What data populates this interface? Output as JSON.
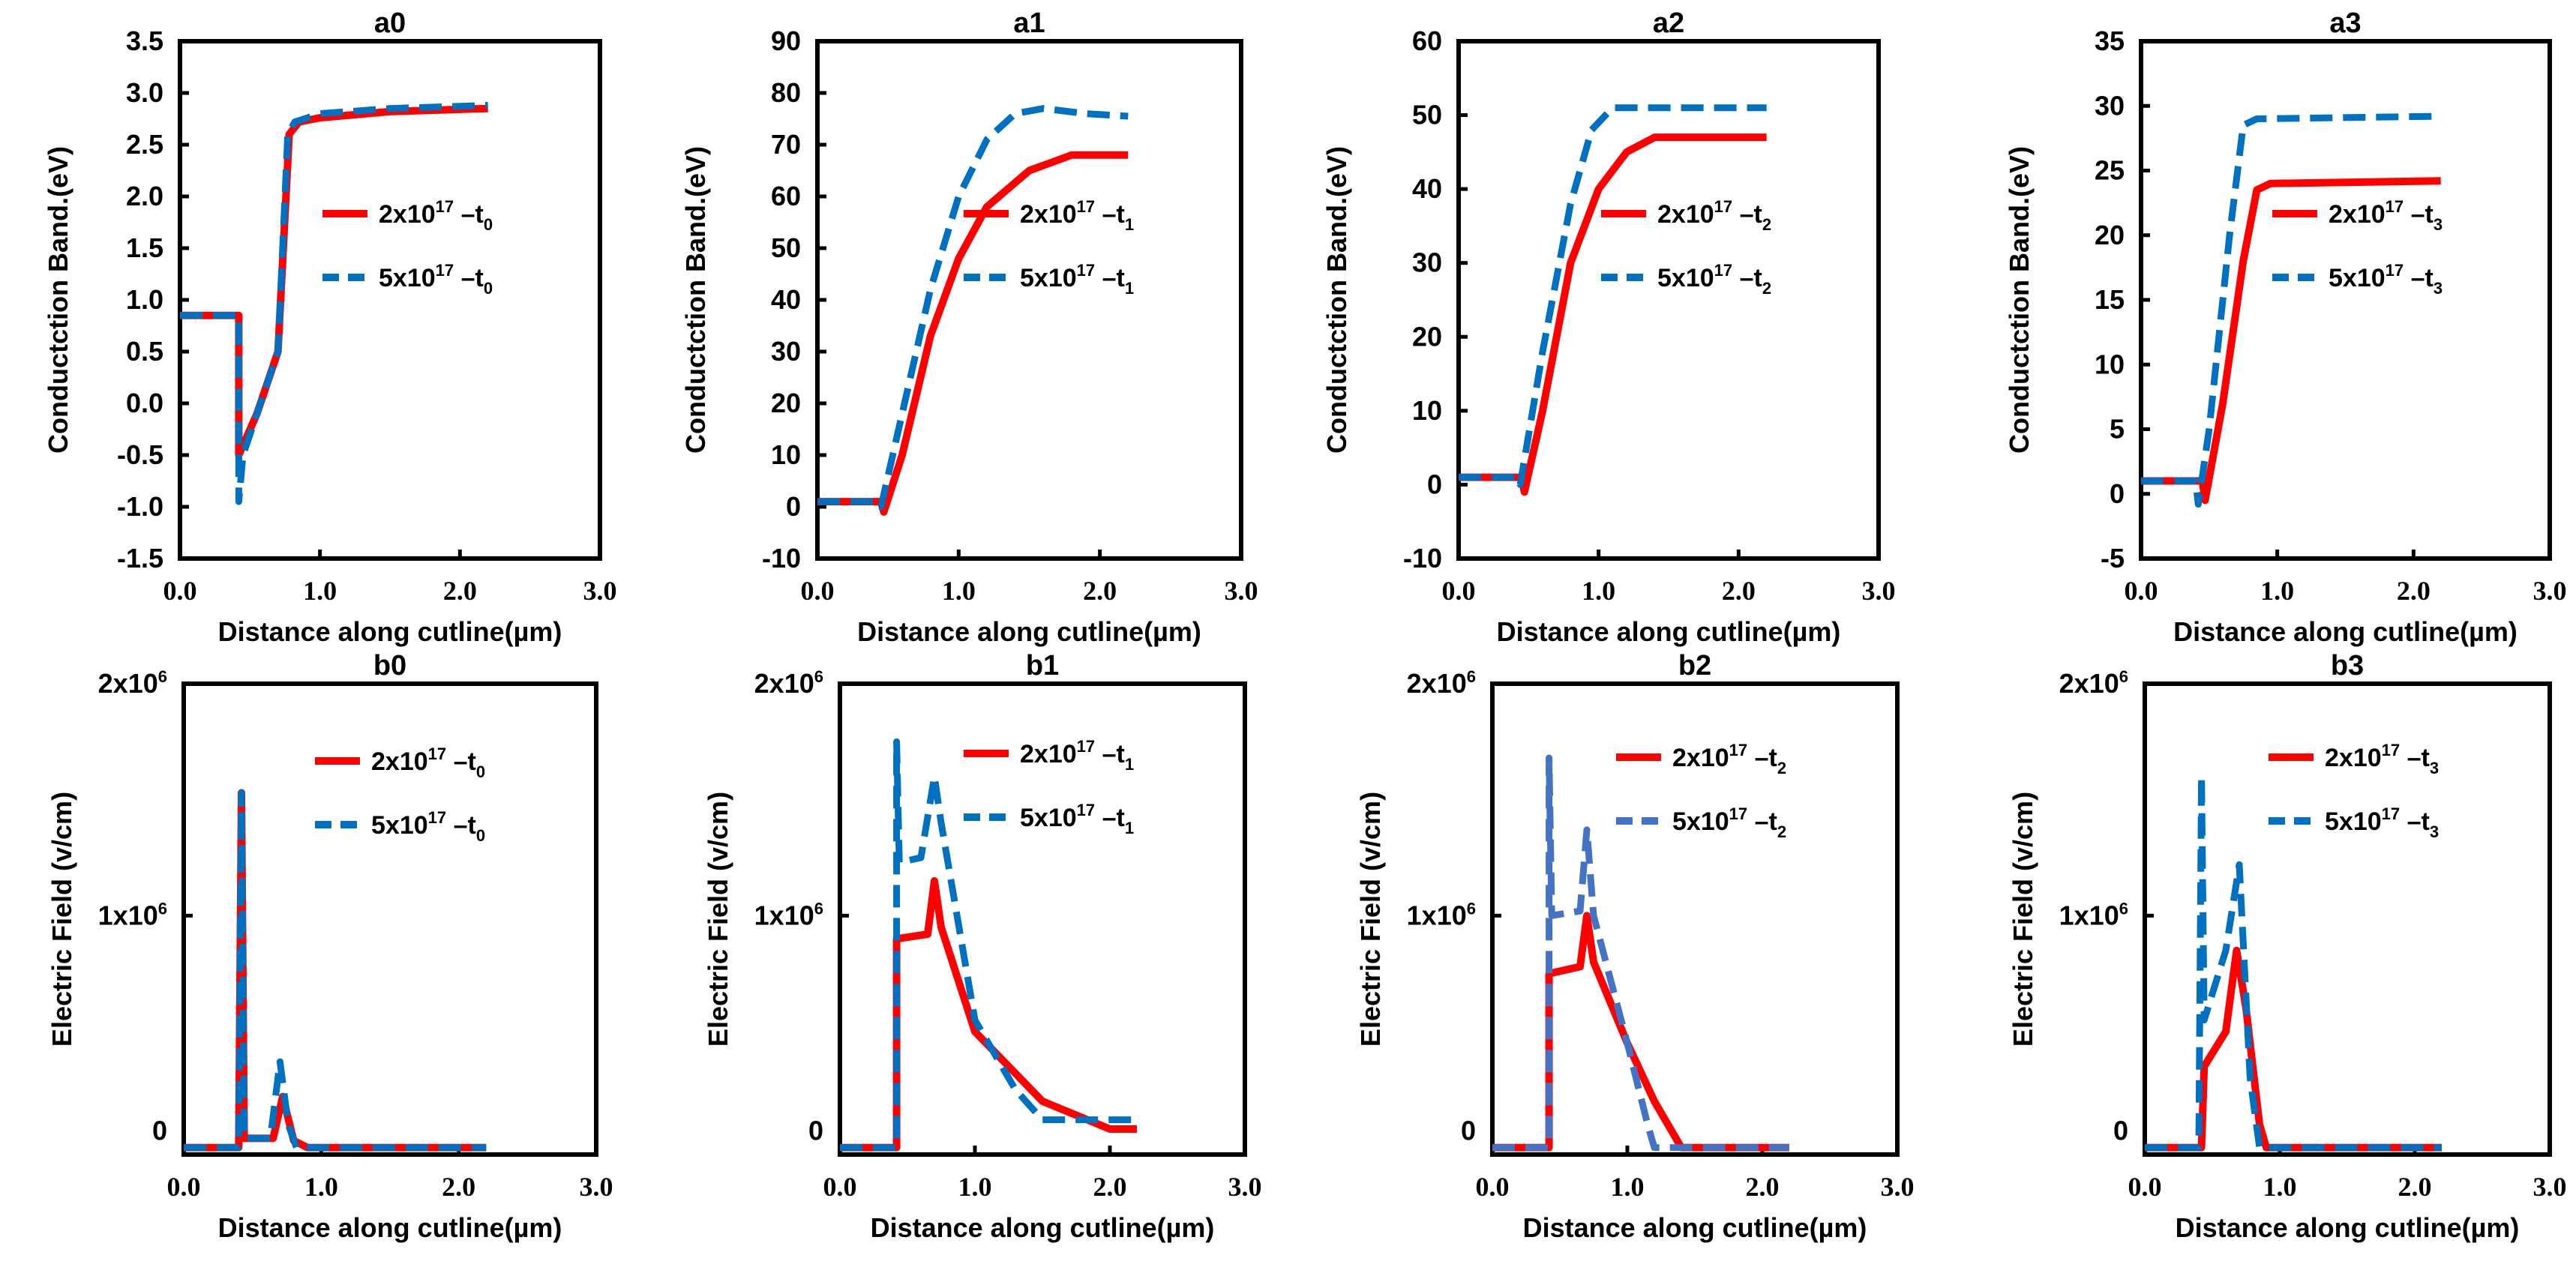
{
  "chart_data": [
    {
      "type": "line",
      "title": "a0",
      "xlabel": "Distance along cutline(µm)",
      "ylabel": "Conductction Band.(eV)",
      "xlim": [
        0,
        3
      ],
      "ylim": [
        -1.5,
        3.5
      ],
      "xticks": [
        "0.0",
        "1.0",
        "2.0",
        "3.0"
      ],
      "yticks": [
        "-1.5",
        "-1.0",
        "-0.5",
        "0.0",
        "0.5",
        "1.0",
        "1.5",
        "2.0",
        "2.5",
        "3.0",
        "3.5"
      ],
      "legend_position": "right",
      "series": [
        {
          "name": "2x10^17 –t0",
          "leg": {
            "base": "2x10",
            "exp": "17",
            "mid": " –t",
            "sub": "0"
          },
          "color": "#ff0000",
          "dash": false,
          "x": [
            0,
            0.42,
            0.42,
            0.55,
            0.7,
            0.78,
            0.85,
            1.0,
            1.5,
            2.2
          ],
          "y": [
            0.85,
            0.85,
            -0.5,
            -0.1,
            0.5,
            2.6,
            2.72,
            2.76,
            2.82,
            2.85
          ]
        },
        {
          "name": "5x10^17 –t0",
          "leg": {
            "base": "5x10",
            "exp": "17",
            "mid": " –t",
            "sub": "0"
          },
          "color": "#0070c0",
          "dash": true,
          "x": [
            0,
            0.42,
            0.42,
            0.45,
            0.7,
            0.77,
            0.82,
            1.0,
            1.5,
            2.2
          ],
          "y": [
            0.85,
            0.85,
            -0.95,
            -0.5,
            0.5,
            2.6,
            2.72,
            2.8,
            2.85,
            2.88
          ]
        }
      ]
    },
    {
      "type": "line",
      "title": "a1",
      "xlabel": "Distance along cutline(µm)",
      "ylabel": "Conductction Band.(eV)",
      "xlim": [
        0,
        3
      ],
      "ylim": [
        -10,
        90
      ],
      "xticks": [
        "0.0",
        "1.0",
        "2.0",
        "3.0"
      ],
      "yticks": [
        "-10",
        "0",
        "10",
        "20",
        "30",
        "40",
        "50",
        "60",
        "70",
        "80",
        "90"
      ],
      "legend_position": "right",
      "series": [
        {
          "name": "2x10^17 –t1",
          "leg": {
            "base": "2x10",
            "exp": "17",
            "mid": " –t",
            "sub": "1"
          },
          "color": "#ff0000",
          "dash": false,
          "x": [
            0,
            0.45,
            0.47,
            0.6,
            0.8,
            1.0,
            1.2,
            1.5,
            1.8,
            2.2
          ],
          "y": [
            1,
            1,
            -1,
            10,
            33,
            48,
            58,
            65,
            68,
            68
          ]
        },
        {
          "name": "5x10^17 –t1",
          "leg": {
            "base": "5x10",
            "exp": "17",
            "mid": " –t",
            "sub": "1"
          },
          "color": "#0070c0",
          "dash": true,
          "x": [
            0,
            0.42,
            0.45,
            0.6,
            0.8,
            1.0,
            1.2,
            1.4,
            1.6,
            1.9,
            2.2
          ],
          "y": [
            1,
            1,
            0,
            18,
            42,
            60,
            71,
            76,
            77,
            76,
            75.5
          ]
        }
      ]
    },
    {
      "type": "line",
      "title": "a2",
      "xlabel": "Distance along cutline(µm)",
      "ylabel": "Conductction Band.(eV)",
      "xlim": [
        0,
        3
      ],
      "ylim": [
        -10,
        60
      ],
      "xticks": [
        "0.0",
        "1.0",
        "2.0",
        "3.0"
      ],
      "yticks": [
        "-10",
        "0",
        "10",
        "20",
        "30",
        "40",
        "50",
        "60"
      ],
      "legend_position": "right",
      "series": [
        {
          "name": "2x10^17 –t2",
          "leg": {
            "base": "2x10",
            "exp": "17",
            "mid": " –t",
            "sub": "2"
          },
          "color": "#ff0000",
          "dash": false,
          "x": [
            0,
            0.45,
            0.47,
            0.6,
            0.8,
            1.0,
            1.2,
            1.4,
            2.2
          ],
          "y": [
            1,
            1,
            -1,
            10,
            30,
            40,
            45,
            47,
            47
          ]
        },
        {
          "name": "5x10^17 –t2",
          "leg": {
            "base": "5x10",
            "exp": "17",
            "mid": " –t",
            "sub": "2"
          },
          "color": "#0070c0",
          "dash": true,
          "x": [
            0,
            0.42,
            0.44,
            0.6,
            0.8,
            0.95,
            1.1,
            2.2
          ],
          "y": [
            1,
            1,
            0,
            18,
            38,
            48,
            51,
            51
          ]
        }
      ]
    },
    {
      "type": "line",
      "title": "a3",
      "xlabel": "Distance along cutline(µm)",
      "ylabel": "Conductction Band.(eV)",
      "xlim": [
        0,
        3
      ],
      "ylim": [
        -5,
        35
      ],
      "xticks": [
        "0.0",
        "1.0",
        "2.0",
        "3.0"
      ],
      "yticks": [
        "-5",
        "0",
        "5",
        "10",
        "15",
        "20",
        "25",
        "30",
        "35"
      ],
      "legend_position": "right",
      "series": [
        {
          "name": "2x10^17 –t3",
          "leg": {
            "base": "2x10",
            "exp": "17",
            "mid": " –t",
            "sub": "3"
          },
          "color": "#ff0000",
          "dash": false,
          "x": [
            0,
            0.45,
            0.47,
            0.6,
            0.75,
            0.85,
            0.95,
            2.2
          ],
          "y": [
            1,
            1,
            -0.5,
            7,
            18,
            23.5,
            24,
            24.2
          ]
        },
        {
          "name": "5x10^17 –t3",
          "leg": {
            "base": "5x10",
            "exp": "17",
            "mid": " –t",
            "sub": "3"
          },
          "color": "#0070c0",
          "dash": true,
          "x": [
            0,
            0.4,
            0.42,
            0.5,
            0.65,
            0.75,
            0.85,
            2.2
          ],
          "y": [
            1,
            1,
            -0.8,
            5,
            20,
            28.5,
            29,
            29.2
          ]
        }
      ]
    },
    {
      "type": "line",
      "title": "b0",
      "xlabel": "Distance along cutline(µm)",
      "ylabel": "Electric Field (v/cm)",
      "xlim": [
        0,
        3
      ],
      "ylim": [
        -0.03,
        2
      ],
      "y_unit": "x10^6",
      "xticks": [
        "0.0",
        "1.0",
        "2.0",
        "3.0"
      ],
      "yticks_exp": [
        {
          "base": "0",
          "exp": ""
        },
        {
          "base": "1x10",
          "exp": "6"
        },
        {
          "base": "2x10",
          "exp": "6"
        }
      ],
      "legend_position": "top-right",
      "series": [
        {
          "name": "2x10^17 –t0",
          "leg": {
            "base": "2x10",
            "exp": "17",
            "mid": " –t",
            "sub": "0"
          },
          "color": "#ff0000",
          "dash": false,
          "x": [
            0,
            0.4,
            0.42,
            0.44,
            0.65,
            0.72,
            0.8,
            0.9,
            2.2
          ],
          "y": [
            0,
            0,
            1.53,
            0.04,
            0.04,
            0.22,
            0.03,
            0,
            0
          ]
        },
        {
          "name": "5x10^17 –t0",
          "leg": {
            "base": "5x10",
            "exp": "17",
            "mid": " –t",
            "sub": "0"
          },
          "color": "#0070c0",
          "dash": true,
          "x": [
            0,
            0.4,
            0.42,
            0.44,
            0.63,
            0.7,
            0.76,
            0.82,
            2.2
          ],
          "y": [
            0,
            0,
            1.53,
            0.04,
            0.04,
            0.37,
            0.1,
            0,
            0
          ]
        }
      ]
    },
    {
      "type": "line",
      "title": "b1",
      "xlabel": "Distance along cutline(µm)",
      "ylabel": "Electric Field (v/cm)",
      "xlim": [
        0,
        3
      ],
      "ylim": [
        -0.03,
        2
      ],
      "y_unit": "x10^6",
      "xticks": [
        "0.0",
        "1.0",
        "2.0",
        "3.0"
      ],
      "yticks_exp": [
        {
          "base": "0",
          "exp": ""
        },
        {
          "base": "1x10",
          "exp": "6"
        },
        {
          "base": "2x10",
          "exp": "6"
        }
      ],
      "legend_position": "top-right",
      "series": [
        {
          "name": "2x10^17 –t1",
          "leg": {
            "base": "2x10",
            "exp": "17",
            "mid": " –t",
            "sub": "1"
          },
          "color": "#ff0000",
          "dash": false,
          "x": [
            0,
            0.42,
            0.42,
            0.65,
            0.7,
            0.75,
            1.0,
            1.5,
            2.0,
            2.2
          ],
          "y": [
            0,
            0,
            0.9,
            0.92,
            1.15,
            0.95,
            0.5,
            0.2,
            0.08,
            0.08
          ]
        },
        {
          "name": "5x10^17 –t1",
          "leg": {
            "base": "5x10",
            "exp": "17",
            "mid": " –t",
            "sub": "1"
          },
          "color": "#0070c0",
          "dash": true,
          "x": [
            0,
            0.42,
            0.42,
            0.44,
            0.6,
            0.7,
            0.75,
            1.0,
            1.3,
            1.5,
            2.2
          ],
          "y": [
            0,
            0,
            1.75,
            1.23,
            1.25,
            1.6,
            1.4,
            0.55,
            0.25,
            0.12,
            0.12
          ]
        }
      ]
    },
    {
      "type": "line",
      "title": "b2",
      "xlabel": "Distance along cutline(µm)",
      "ylabel": "Electric Field (v/cm)",
      "xlim": [
        0,
        3
      ],
      "ylim": [
        -0.03,
        2
      ],
      "y_unit": "x10^6",
      "xticks": [
        "0.0",
        "1.0",
        "2.0",
        "3.0"
      ],
      "yticks_exp": [
        {
          "base": "0",
          "exp": ""
        },
        {
          "base": "1x10",
          "exp": "6"
        },
        {
          "base": "2x10",
          "exp": "6"
        }
      ],
      "legend_position": "top-right",
      "series": [
        {
          "name": "2x10^17 –t2",
          "leg": {
            "base": "2x10",
            "exp": "17",
            "mid": " –t",
            "sub": "2"
          },
          "color": "#ff0000",
          "dash": false,
          "x": [
            0,
            0.42,
            0.42,
            0.65,
            0.7,
            0.75,
            1.0,
            1.2,
            1.4,
            2.2
          ],
          "y": [
            0,
            0,
            0.75,
            0.78,
            1.0,
            0.8,
            0.45,
            0.2,
            0,
            0
          ]
        },
        {
          "name": "5x10^17 –t2",
          "leg": {
            "base": "5x10",
            "exp": "17",
            "mid": " –t",
            "sub": "2"
          },
          "color": "#4472c4",
          "dash": true,
          "x": [
            0,
            0.42,
            0.42,
            0.44,
            0.65,
            0.7,
            0.75,
            1.0,
            1.15,
            1.2,
            2.2
          ],
          "y": [
            0,
            0,
            1.68,
            1.0,
            1.02,
            1.37,
            1.0,
            0.45,
            0.1,
            0,
            0
          ]
        }
      ]
    },
    {
      "type": "line",
      "title": "b3",
      "xlabel": "Distance along cutline(µm)",
      "ylabel": "Electric Field (v/cm)",
      "xlim": [
        0,
        3
      ],
      "ylim": [
        -0.03,
        2
      ],
      "y_unit": "x10^6",
      "xticks": [
        "0.0",
        "1.0",
        "2.0",
        "3.0"
      ],
      "yticks_exp": [
        {
          "base": "0",
          "exp": ""
        },
        {
          "base": "1x10",
          "exp": "6"
        },
        {
          "base": "2x10",
          "exp": "6"
        }
      ],
      "legend_position": "top-right",
      "series": [
        {
          "name": "2x10^17 –t3",
          "leg": {
            "base": "2x10",
            "exp": "17",
            "mid": " –t",
            "sub": "3"
          },
          "color": "#ff0000",
          "dash": false,
          "x": [
            0,
            0.42,
            0.44,
            0.6,
            0.68,
            0.75,
            0.85,
            0.9,
            2.2
          ],
          "y": [
            0,
            0,
            0.35,
            0.5,
            0.85,
            0.6,
            0.1,
            0,
            0
          ]
        },
        {
          "name": "5x10^17 –t3",
          "leg": {
            "base": "5x10",
            "exp": "17",
            "mid": " –t",
            "sub": "3"
          },
          "color": "#0070c0",
          "dash": true,
          "x": [
            0,
            0.4,
            0.42,
            0.44,
            0.6,
            0.7,
            0.78,
            0.85,
            2.2
          ],
          "y": [
            0,
            0,
            1.6,
            0.55,
            0.85,
            1.22,
            0.3,
            0,
            0
          ]
        }
      ]
    }
  ]
}
